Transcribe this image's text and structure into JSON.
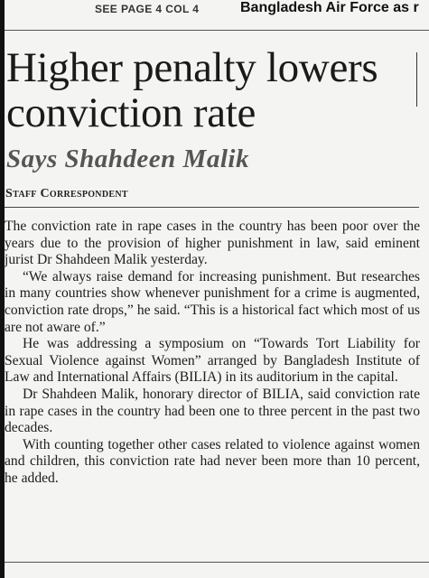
{
  "header": {
    "see_page": "SEE PAGE 4 COL 4",
    "teaser": "Bangladesh Air Force as r"
  },
  "article": {
    "headline": "Higher penalty lowers conviction rate",
    "kicker": "Says Shahdeen Malik",
    "byline": "Staff Correspondent",
    "paragraphs": [
      "The conviction rate in rape cases in the country has been poor over the years due to the provision of higher punishment in law, said eminent jurist Dr Shahdeen Malik yesterday.",
      "“We always raise demand for increasing punishment. But researches in many countries show whenever punishment for a crime is augmented, conviction rate drops,” he said. “This is a historical fact which most of us are not aware of.”",
      "He was addressing a symposium on “Towards Tort Liability for Sexual Violence against Women” arranged by Bangladesh Institute of Law and International Affairs (BILIA) in its auditorium in the capital.",
      "Dr Shahdeen Malik, honorary director of BILIA, said conviction rate in rape cases in the country had been one to three percent in the past two decades.",
      "With counting together other cases related to violence against women and children, this conviction rate had never been more than 10 percent, he added."
    ]
  }
}
